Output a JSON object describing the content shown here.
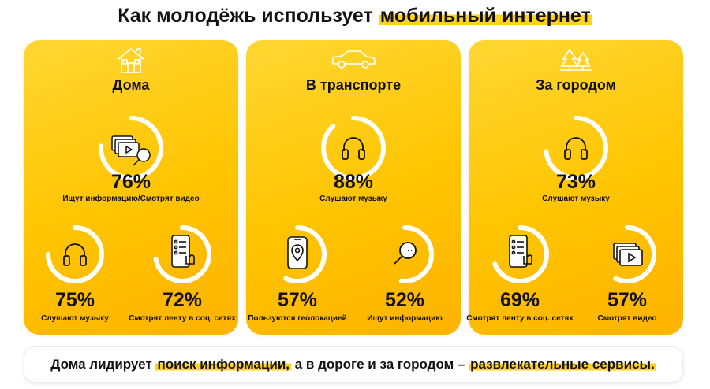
{
  "header": {
    "title_part1": "Как молодёжь использует ",
    "title_highlight": "мобильный интернет"
  },
  "colors": {
    "accent": "#ffc400",
    "ring": "#ffffff",
    "text": "#111111"
  },
  "cards": [
    {
      "title": "Дома",
      "icon": "house-icon",
      "main": {
        "percent": "76%",
        "label": "Ищут информацию/Смотрят видео",
        "icon": "video-search-icon",
        "value": 0.76
      },
      "left": {
        "percent": "75%",
        "label": "Слушают музыку",
        "icon": "headphones-icon",
        "value": 0.75
      },
      "right": {
        "percent": "72%",
        "label": "Смотрят ленту в соц. сетях",
        "icon": "phone-feed-icon",
        "value": 0.72
      }
    },
    {
      "title": "В транспорте",
      "icon": "car-icon",
      "main": {
        "percent": "88%",
        "label": "Слушают музыку",
        "icon": "headphones-icon",
        "value": 0.88
      },
      "left": {
        "percent": "57%",
        "label": "Пользуются геолокацией",
        "icon": "phone-location-icon",
        "value": 0.57
      },
      "right": {
        "percent": "52%",
        "label": "Ищут информацию",
        "icon": "magnifier-icon",
        "value": 0.52
      }
    },
    {
      "title": "За городом",
      "icon": "trees-icon",
      "main": {
        "percent": "73%",
        "label": "Слушают музыку",
        "icon": "headphones-icon",
        "value": 0.73
      },
      "left": {
        "percent": "69%",
        "label": "Смотрят ленту в соц. сетях",
        "icon": "phone-feed-icon",
        "value": 0.69
      },
      "right": {
        "percent": "57%",
        "label": "Смотрят видео",
        "icon": "video-icon",
        "value": 0.57
      }
    }
  ],
  "footer": {
    "part1": "Дома лидирует ",
    "highlight1": "поиск информации,",
    "part2": " а в дороге и за городом – ",
    "highlight2": "развлекательные сервисы."
  }
}
